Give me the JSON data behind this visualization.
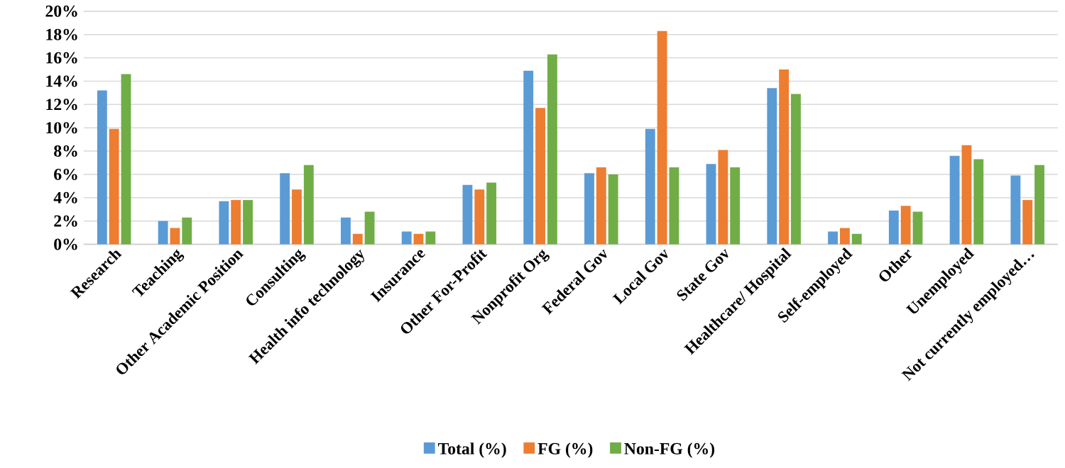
{
  "chart_data": {
    "type": "bar",
    "categories": [
      "Research",
      "Teaching",
      "Other Academic Position",
      "Consulting",
      "Health info technology",
      "Insurance",
      "Other For-Profit",
      "Nonprofit Org",
      "Federal Gov",
      "Local Gov",
      "State Gov",
      "Healthcare/ Hospital",
      "Self-employed",
      "Other",
      "Unemployed",
      "Not currently employed…"
    ],
    "series": [
      {
        "name": "Total (%)",
        "color": "#5b9bd5",
        "values": [
          13.2,
          2.0,
          3.7,
          6.1,
          2.3,
          1.1,
          5.1,
          14.9,
          6.1,
          9.9,
          6.9,
          13.4,
          1.1,
          2.9,
          7.6,
          5.9
        ]
      },
      {
        "name": "FG (%)",
        "color": "#ed7d31",
        "values": [
          9.9,
          1.4,
          3.8,
          4.7,
          0.9,
          0.9,
          4.7,
          11.7,
          6.6,
          18.3,
          8.1,
          15.0,
          1.4,
          3.3,
          8.5,
          3.8
        ]
      },
      {
        "name": "Non-FG (%)",
        "color": "#70ad47",
        "values": [
          14.6,
          2.3,
          3.8,
          6.8,
          2.8,
          1.1,
          5.3,
          16.3,
          6.0,
          6.6,
          6.6,
          12.9,
          0.9,
          2.8,
          7.3,
          6.8
        ]
      }
    ],
    "ylim": [
      0,
      20
    ],
    "yticks": [
      {
        "value": 0,
        "label": "0%"
      },
      {
        "value": 2,
        "label": "2%"
      },
      {
        "value": 4,
        "label": "4%"
      },
      {
        "value": 6,
        "label": "6%"
      },
      {
        "value": 8,
        "label": "8%"
      },
      {
        "value": 10,
        "label": "10%"
      },
      {
        "value": 12,
        "label": "12%"
      },
      {
        "value": 14,
        "label": "14%"
      },
      {
        "value": 16,
        "label": "16%"
      },
      {
        "value": 18,
        "label": "18%"
      },
      {
        "value": 20,
        "label": "20%"
      }
    ],
    "grid": "y",
    "legend": "bottom"
  }
}
